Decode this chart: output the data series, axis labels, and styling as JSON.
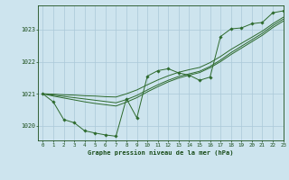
{
  "title": "Graphe pression niveau de la mer (hPa)",
  "xlim": [
    -0.5,
    23
  ],
  "ylim": [
    1019.55,
    1023.75
  ],
  "yticks": [
    1020,
    1021,
    1022,
    1023
  ],
  "xtick_labels": [
    "0",
    "1",
    "2",
    "3",
    "4",
    "5",
    "6",
    "7",
    "8",
    "9",
    "10",
    "11",
    "12",
    "13",
    "14",
    "15",
    "16",
    "17",
    "18",
    "19",
    "20",
    "21",
    "22",
    "23"
  ],
  "bg_color": "#cde4ee",
  "grid_color": "#aac8d8",
  "line_color": "#2d6a2d",
  "marker_color": "#2d6a2d",
  "text_color": "#1a4d1a",
  "series": {
    "main": [
      1021.0,
      1020.75,
      1020.2,
      1020.1,
      1019.85,
      1019.78,
      1019.72,
      1019.68,
      1020.85,
      1020.25,
      1021.55,
      1021.72,
      1021.78,
      1021.65,
      1021.58,
      1021.42,
      1021.52,
      1022.78,
      1023.02,
      1023.05,
      1023.18,
      1023.22,
      1023.52,
      1023.58
    ],
    "smooth1": [
      1021.0,
      1020.96,
      1020.92,
      1020.88,
      1020.84,
      1020.8,
      1020.76,
      1020.72,
      1020.82,
      1020.95,
      1021.12,
      1021.28,
      1021.42,
      1021.54,
      1021.62,
      1021.7,
      1021.85,
      1022.05,
      1022.28,
      1022.48,
      1022.68,
      1022.88,
      1023.12,
      1023.32
    ],
    "smooth2": [
      1021.0,
      1020.93,
      1020.87,
      1020.81,
      1020.75,
      1020.7,
      1020.66,
      1020.62,
      1020.74,
      1020.88,
      1021.06,
      1021.22,
      1021.37,
      1021.49,
      1021.58,
      1021.66,
      1021.81,
      1022.0,
      1022.22,
      1022.42,
      1022.62,
      1022.82,
      1023.06,
      1023.26
    ],
    "trend": [
      1021.0,
      1020.99,
      1020.97,
      1020.96,
      1020.94,
      1020.93,
      1020.91,
      1020.9,
      1021.0,
      1021.12,
      1021.28,
      1021.43,
      1021.56,
      1021.67,
      1021.75,
      1021.82,
      1021.97,
      1022.16,
      1022.38,
      1022.57,
      1022.76,
      1022.95,
      1023.18,
      1023.38
    ]
  }
}
